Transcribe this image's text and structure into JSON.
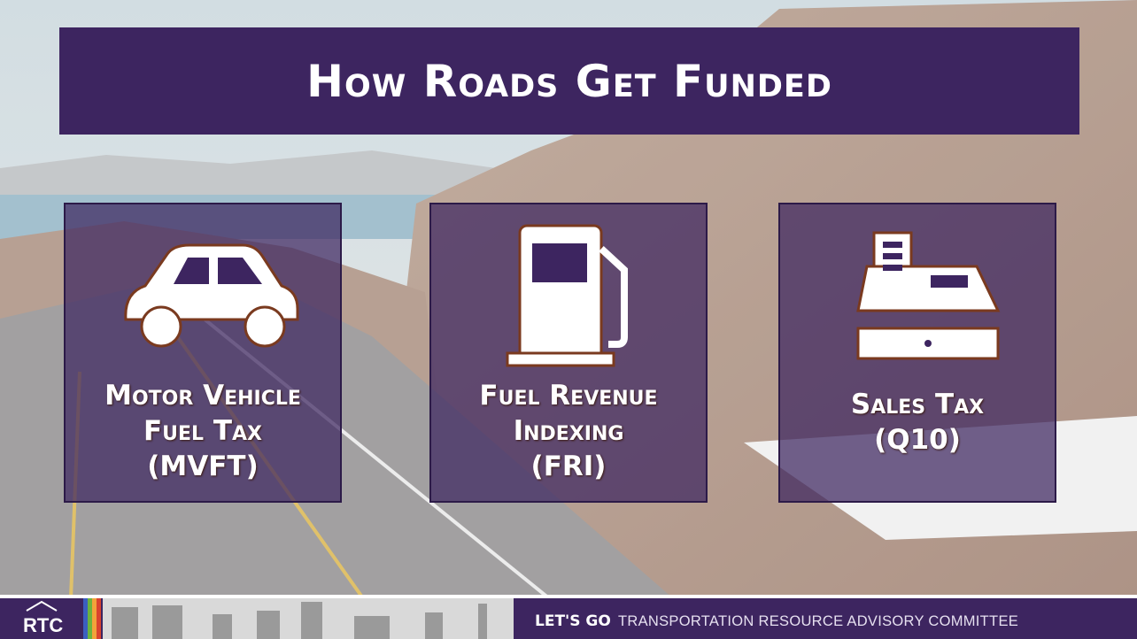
{
  "header": {
    "title": "How Roads Get Funded"
  },
  "cards": [
    {
      "lines": [
        "Motor Vehicle",
        "Fuel Tax",
        "(MVFT)"
      ]
    },
    {
      "lines": [
        "Fuel Revenue",
        "Indexing",
        "(FRI)"
      ]
    },
    {
      "lines": [
        "Sales Tax",
        "(Q10)"
      ]
    }
  ],
  "footer": {
    "logo": "RTC",
    "tagline": "LET'S GO",
    "committee": "TRANSPORTATION RESOURCE ADVISORY COMMITTEE"
  }
}
